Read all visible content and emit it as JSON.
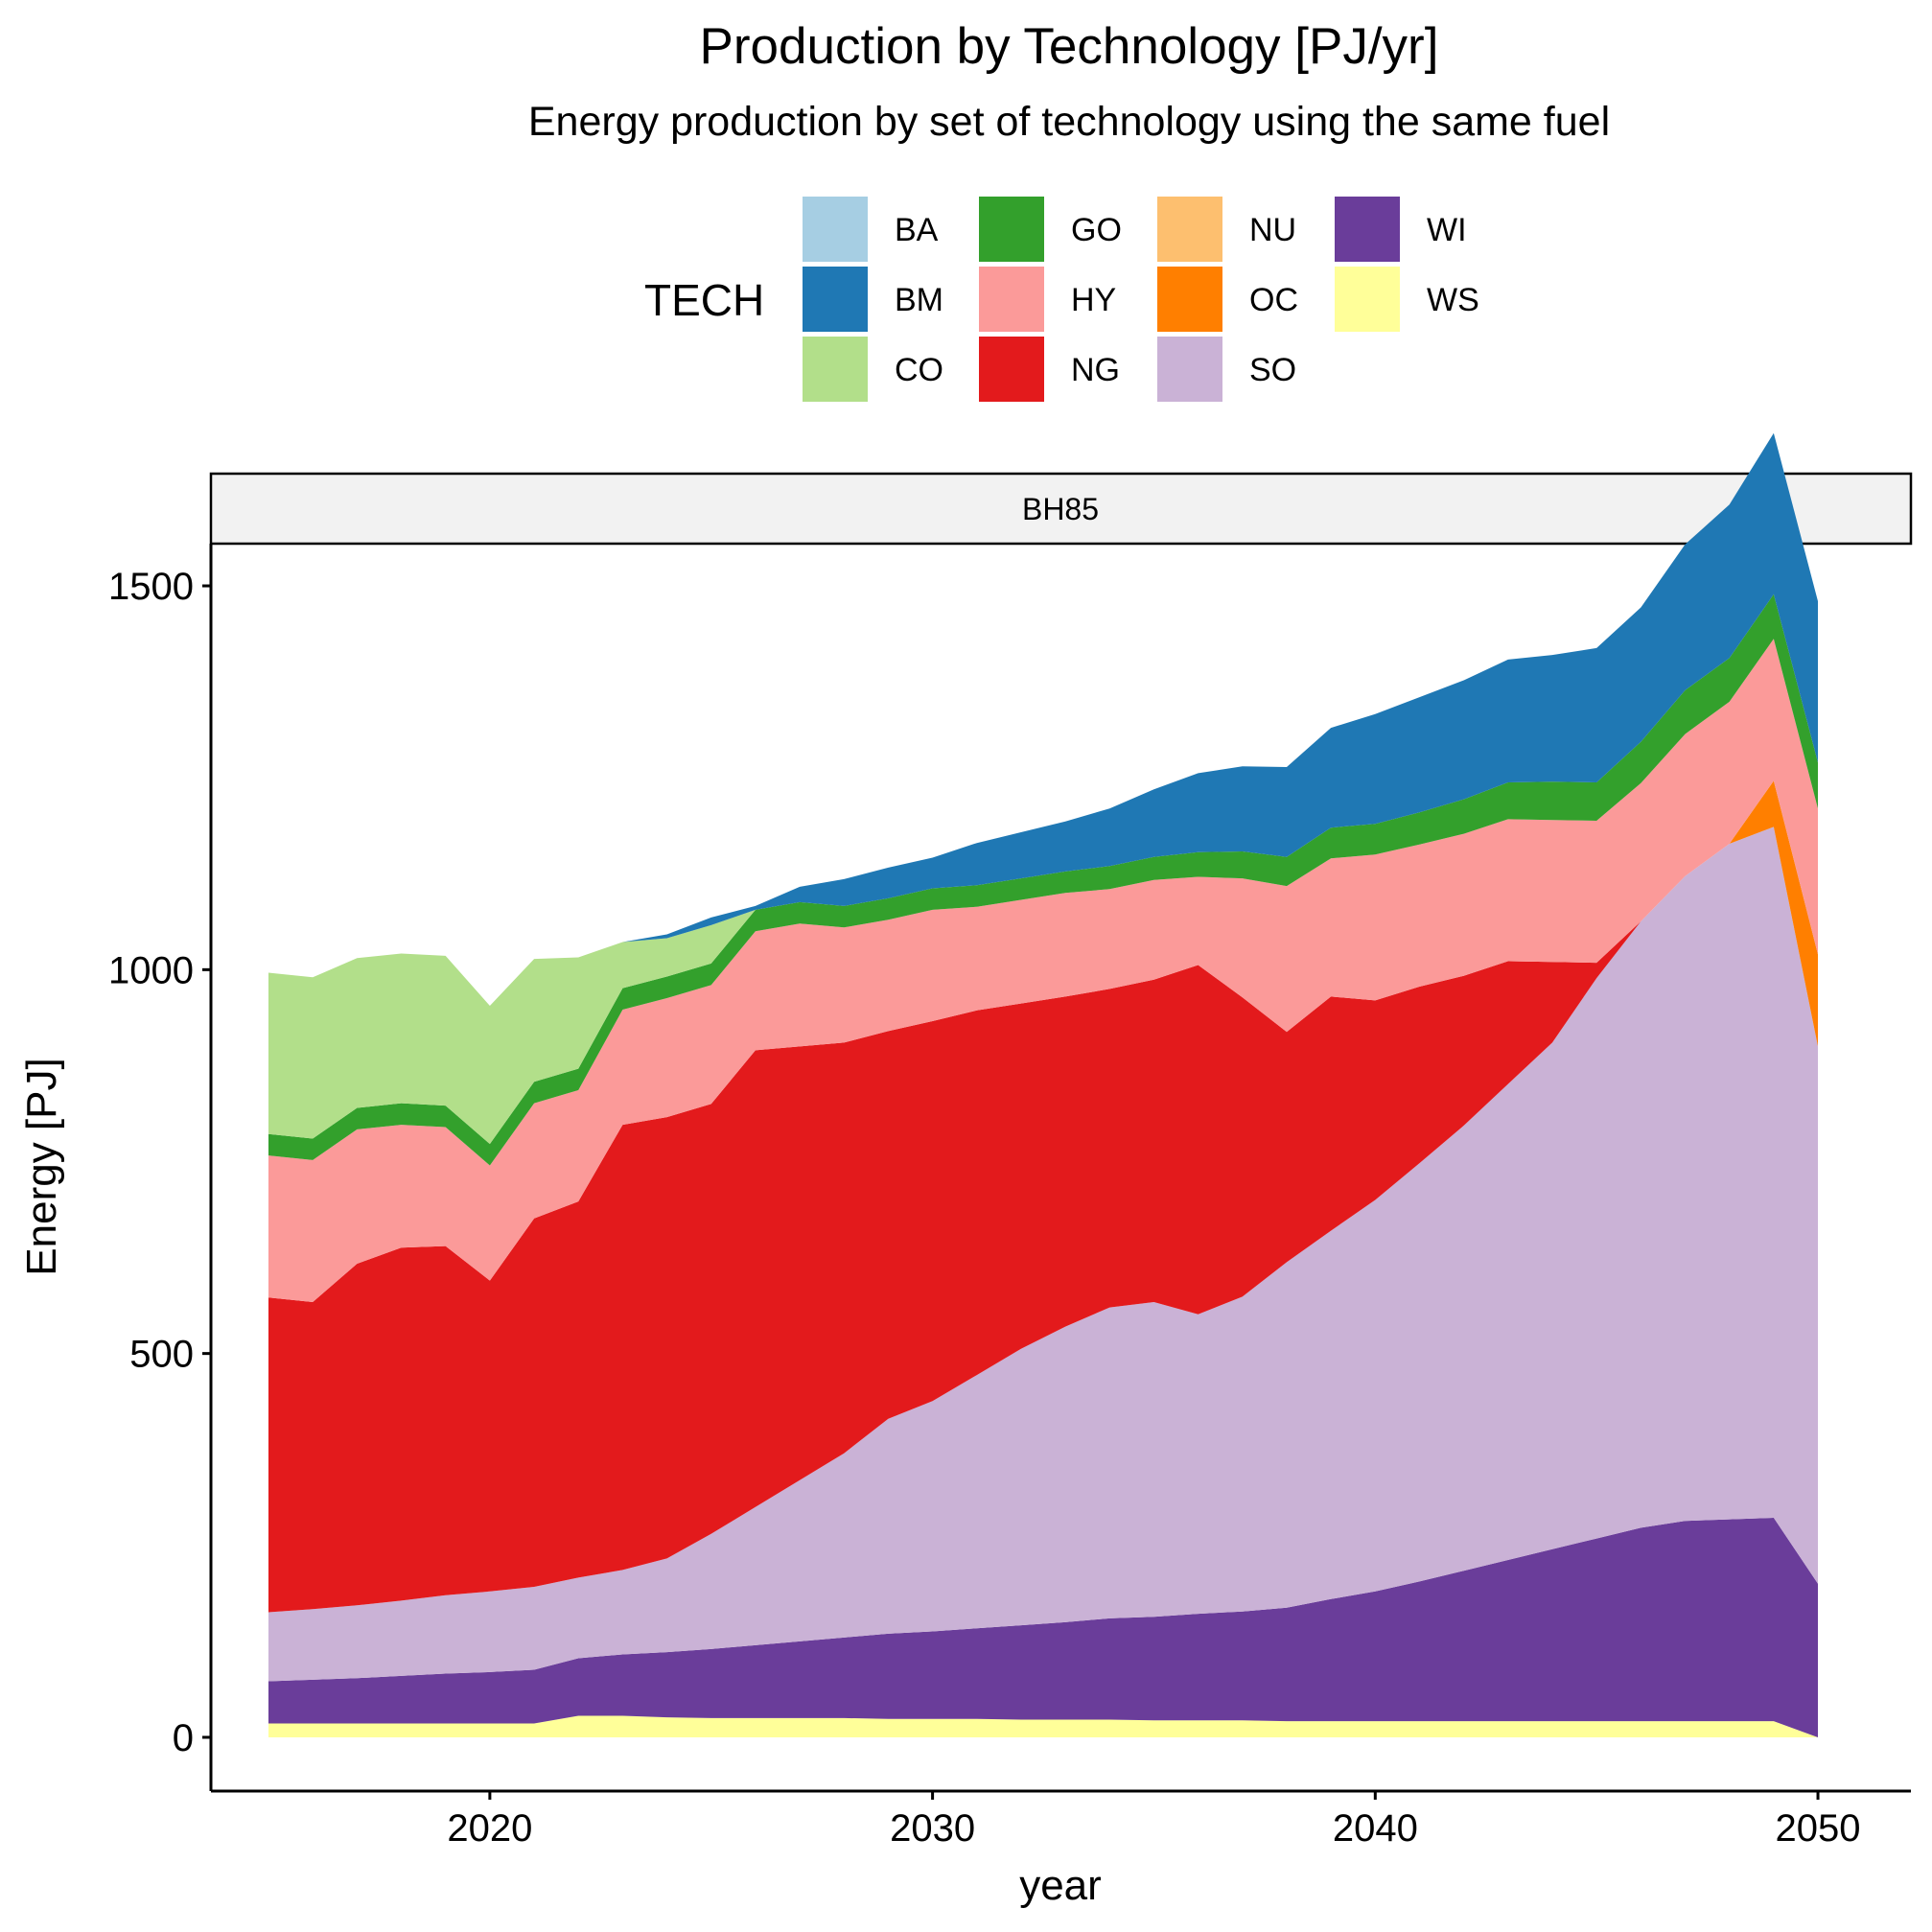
{
  "chart_data": {
    "type": "area",
    "title": "Production by Technology [PJ/yr]",
    "subtitle": "Energy production by set of technology using the same fuel",
    "xlabel": "year",
    "ylabel": "Energy [PJ]",
    "facet_label": "BH85",
    "legend_title": "TECH",
    "legend_position": "top",
    "grid": false,
    "xlim": [
      2013.7,
      2052.1
    ],
    "ylim": [
      -70,
      1555
    ],
    "x_ticks": [
      2020,
      2030,
      2040,
      2050
    ],
    "x_tick_labels": [
      "2020",
      "2030",
      "2040",
      "2050"
    ],
    "y_ticks": [
      0,
      500,
      1000,
      1500
    ],
    "y_tick_labels": [
      "0",
      "500",
      "1000",
      "1500"
    ],
    "stack_order": [
      "WS",
      "WI",
      "SO",
      "OC",
      "NU",
      "NG",
      "HY",
      "GO",
      "CO",
      "BM",
      "BA"
    ],
    "legend": [
      {
        "label": "BA",
        "color": "#a6cee3"
      },
      {
        "label": "BM",
        "color": "#1f78b4"
      },
      {
        "label": "CO",
        "color": "#b2df8a"
      },
      {
        "label": "GO",
        "color": "#33a02c"
      },
      {
        "label": "HY",
        "color": "#fb9a99"
      },
      {
        "label": "NG",
        "color": "#e31a1c"
      },
      {
        "label": "NU",
        "color": "#fdbf6f"
      },
      {
        "label": "OC",
        "color": "#ff7f00"
      },
      {
        "label": "SO",
        "color": "#cab2d6"
      },
      {
        "label": "WI",
        "color": "#6a3d9a"
      },
      {
        "label": "WS",
        "color": "#ffff99"
      }
    ],
    "x": [
      2015,
      2016,
      2017,
      2018,
      2019,
      2020,
      2021,
      2022,
      2023,
      2024,
      2025,
      2026,
      2027,
      2028,
      2029,
      2030,
      2031,
      2032,
      2033,
      2034,
      2035,
      2036,
      2037,
      2038,
      2039,
      2040,
      2041,
      2042,
      2043,
      2044,
      2045,
      2046,
      2047,
      2048,
      2049,
      2050
    ],
    "series": [
      {
        "name": "WS",
        "values": [
          18,
          18,
          18,
          18,
          18,
          18,
          18,
          28,
          28,
          26,
          25,
          25,
          25,
          25,
          24,
          24,
          24,
          23,
          23,
          23,
          22,
          22,
          22,
          21,
          21,
          21,
          21,
          21,
          21,
          21,
          21,
          21,
          21,
          21,
          21,
          0
        ]
      },
      {
        "name": "WI",
        "values": [
          55,
          57,
          59,
          62,
          65,
          67,
          70,
          75,
          80,
          85,
          90,
          95,
          100,
          105,
          111,
          114,
          118,
          123,
          127,
          132,
          135,
          139,
          142,
          148,
          159,
          169,
          182,
          196,
          210,
          224,
          238,
          252,
          261,
          263,
          265,
          200
        ]
      },
      {
        "name": "SO",
        "values": [
          90,
          92,
          95,
          98,
          102,
          105,
          108,
          105,
          110,
          122,
          150,
          180,
          210,
          240,
          280,
          300,
          330,
          360,
          385,
          405,
          410,
          390,
          410,
          450,
          480,
          510,
          545,
          580,
          620,
          660,
          730,
          790,
          840,
          880,
          900,
          700
        ]
      },
      {
        "name": "OC",
        "values": [
          0,
          0,
          0,
          0,
          0,
          0,
          0,
          0,
          0,
          0,
          0,
          0,
          0,
          0,
          0,
          0,
          0,
          0,
          0,
          0,
          0,
          0,
          0,
          0,
          0,
          0,
          0,
          0,
          0,
          0,
          0,
          0,
          0,
          0,
          60,
          120
        ]
      },
      {
        "name": "NU",
        "values": [
          0,
          0,
          0,
          0,
          0,
          0,
          0,
          0,
          0,
          0,
          0,
          0,
          0,
          0,
          0,
          0,
          0,
          0,
          0,
          0,
          0,
          0,
          0,
          0,
          0,
          0,
          0,
          0,
          0,
          0,
          0,
          0,
          0,
          0,
          0,
          0
        ]
      },
      {
        "name": "NG",
        "values": [
          410,
          400,
          445,
          460,
          455,
          405,
          480,
          490,
          580,
          575,
          560,
          595,
          565,
          535,
          505,
          495,
          475,
          450,
          430,
          415,
          420,
          455,
          390,
          300,
          305,
          260,
          230,
          195,
          160,
          105,
          20,
          0,
          0,
          0,
          0,
          0
        ]
      },
      {
        "name": "HY",
        "values": [
          185,
          185,
          175,
          160,
          155,
          150,
          150,
          145,
          150,
          155,
          155,
          155,
          160,
          150,
          145,
          145,
          135,
          135,
          135,
          130,
          130,
          115,
          155,
          190,
          180,
          190,
          185,
          185,
          185,
          185,
          185,
          180,
          185,
          185,
          185,
          190
        ]
      },
      {
        "name": "GO",
        "values": [
          28,
          28,
          28,
          28,
          28,
          28,
          28,
          28,
          28,
          28,
          28,
          28,
          28,
          28,
          28,
          28,
          28,
          28,
          28,
          30,
          30,
          32,
          35,
          38,
          40,
          40,
          42,
          45,
          48,
          50,
          50,
          54,
          57,
          57,
          58,
          60
        ]
      },
      {
        "name": "CO",
        "values": [
          210,
          210,
          195,
          195,
          195,
          180,
          160,
          145,
          60,
          50,
          50,
          0,
          0,
          0,
          0,
          0,
          0,
          0,
          0,
          0,
          0,
          0,
          0,
          0,
          0,
          0,
          0,
          0,
          0,
          0,
          0,
          0,
          0,
          0,
          0,
          0
        ]
      },
      {
        "name": "BM",
        "values": [
          0,
          0,
          0,
          0,
          0,
          0,
          0,
          0,
          0,
          5,
          10,
          5,
          20,
          35,
          40,
          40,
          55,
          60,
          65,
          75,
          88,
          103,
          111,
          117,
          130,
          143,
          150,
          155,
          160,
          165,
          175,
          175,
          190,
          200,
          210,
          210
        ]
      },
      {
        "name": "BA",
        "values": [
          0,
          0,
          0,
          0,
          0,
          0,
          0,
          0,
          0,
          0,
          0,
          0,
          0,
          0,
          0,
          0,
          0,
          0,
          0,
          0,
          0,
          0,
          0,
          0,
          0,
          0,
          0,
          0,
          0,
          0,
          0,
          0,
          0,
          0,
          0,
          0
        ]
      }
    ]
  }
}
